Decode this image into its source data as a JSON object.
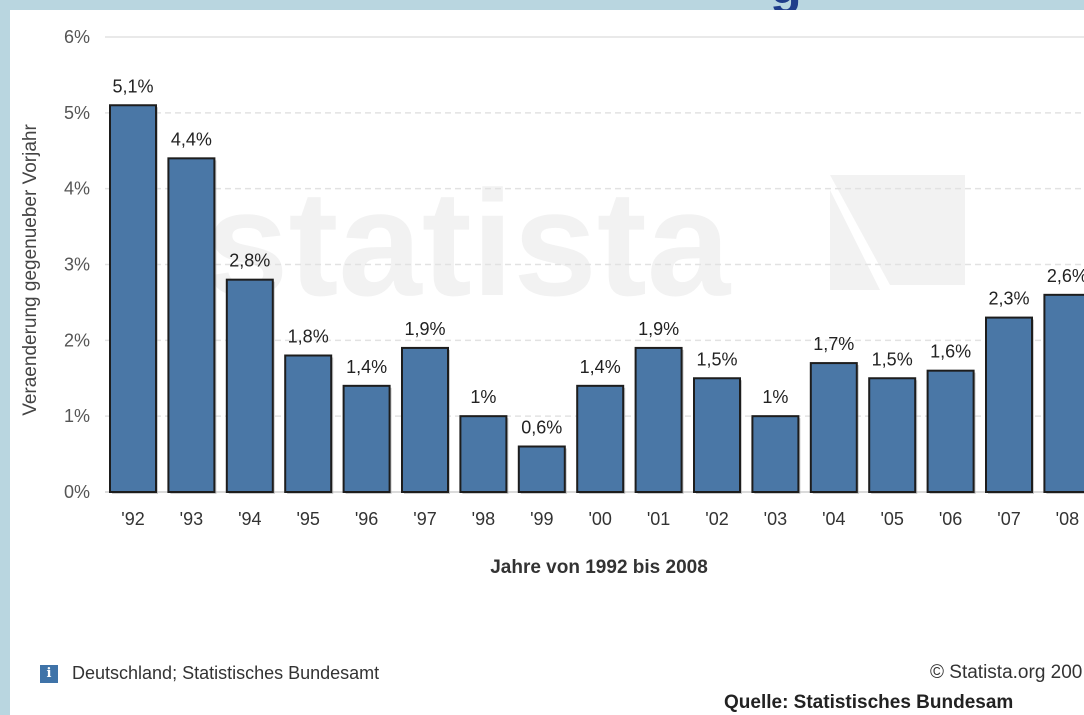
{
  "chart_data": {
    "type": "bar",
    "categories": [
      "'92",
      "'93",
      "'94",
      "'95",
      "'96",
      "'97",
      "'98",
      "'99",
      "'00",
      "'01",
      "'02",
      "'03",
      "'04",
      "'05",
      "'06",
      "'07",
      "'08"
    ],
    "values": [
      5.1,
      4.4,
      2.8,
      1.8,
      1.4,
      1.9,
      1.0,
      0.6,
      1.4,
      1.9,
      1.5,
      1.0,
      1.7,
      1.5,
      1.6,
      2.3,
      2.6
    ],
    "data_labels": [
      "5,1%",
      "4,4%",
      "2,8%",
      "1,8%",
      "1,4%",
      "1,9%",
      "1%",
      "0,6%",
      "1,4%",
      "1,9%",
      "1,5%",
      "1%",
      "1,7%",
      "1,5%",
      "1,6%",
      "2,3%",
      "2,6%"
    ],
    "y_ticks": [
      0,
      1,
      2,
      3,
      4,
      5,
      6
    ],
    "y_tick_labels": [
      "0%",
      "1%",
      "2%",
      "3%",
      "4%",
      "5%",
      "6%"
    ],
    "ylim": [
      0,
      6
    ],
    "xlabel": "Jahre von 1992 bis 2008",
    "ylabel": "Veraenderung gegenueber Vorjahr",
    "grid": true,
    "bar_color": "#4a77a6",
    "watermark": "statista"
  },
  "footer": {
    "info_icon": "info-icon",
    "source_note": "Deutschland; Statistisches Bundesamt",
    "copyright": "© Statista.org 200",
    "source_line": "Quelle: Statistisches Bundesam"
  },
  "top_cut_text": "g"
}
